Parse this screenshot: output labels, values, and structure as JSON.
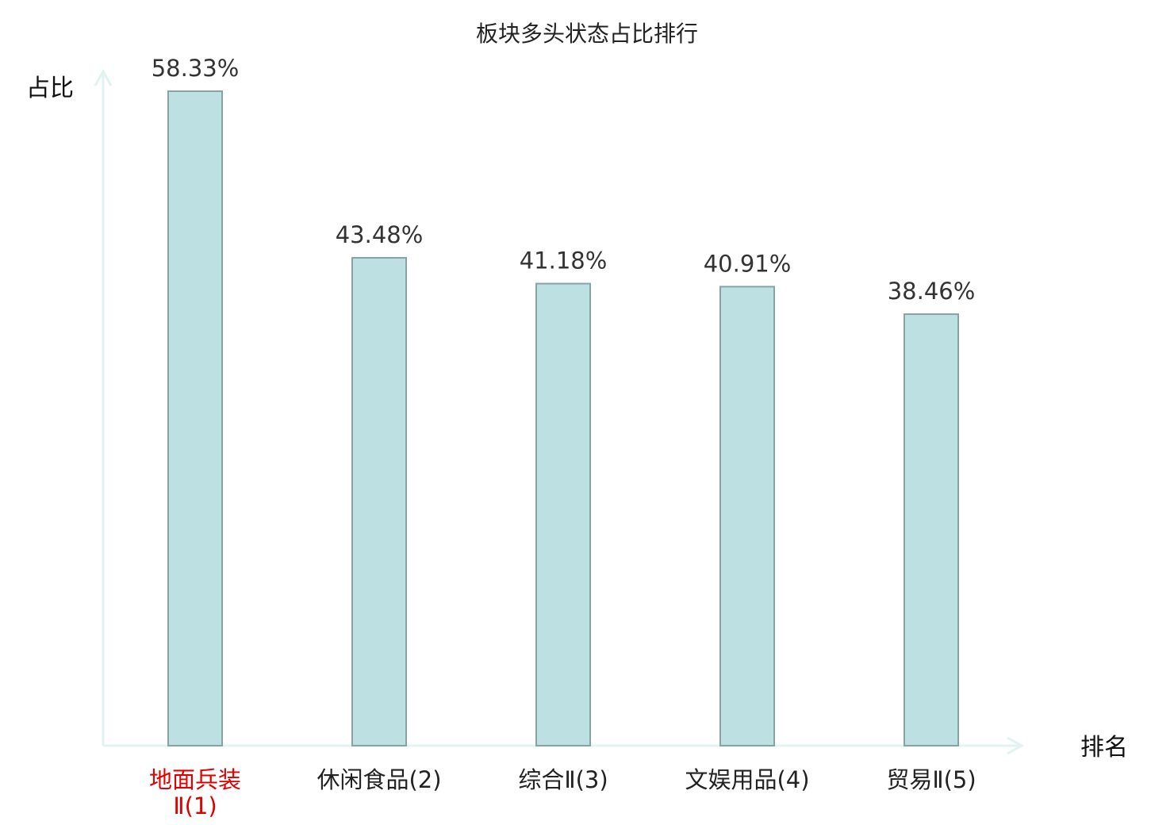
{
  "chart_data": {
    "type": "bar",
    "title": "板块多头状态占比排行",
    "ylabel": "占比",
    "xlabel": "排名",
    "categories": [
      [
        "地面兵装",
        "Ⅱ(1)"
      ],
      [
        "休闲食品(2)"
      ],
      [
        "综合Ⅱ(3)"
      ],
      [
        "文娱用品(4)"
      ],
      [
        "贸易Ⅱ(5)"
      ]
    ],
    "values": [
      58.33,
      43.48,
      41.18,
      40.91,
      38.46
    ],
    "value_labels": [
      "58.33%",
      "43.48%",
      "41.18%",
      "40.91%",
      "38.46%"
    ],
    "ylim": [
      0,
      58.33
    ],
    "grid": false,
    "legend": "none",
    "highlight_index": 0,
    "colors": {
      "bar_fill": "#bde1e3",
      "bar_stroke": "#88a3a5",
      "axis": "#e0f3f1",
      "highlight_text": "#e00000",
      "text": "#222222"
    }
  }
}
